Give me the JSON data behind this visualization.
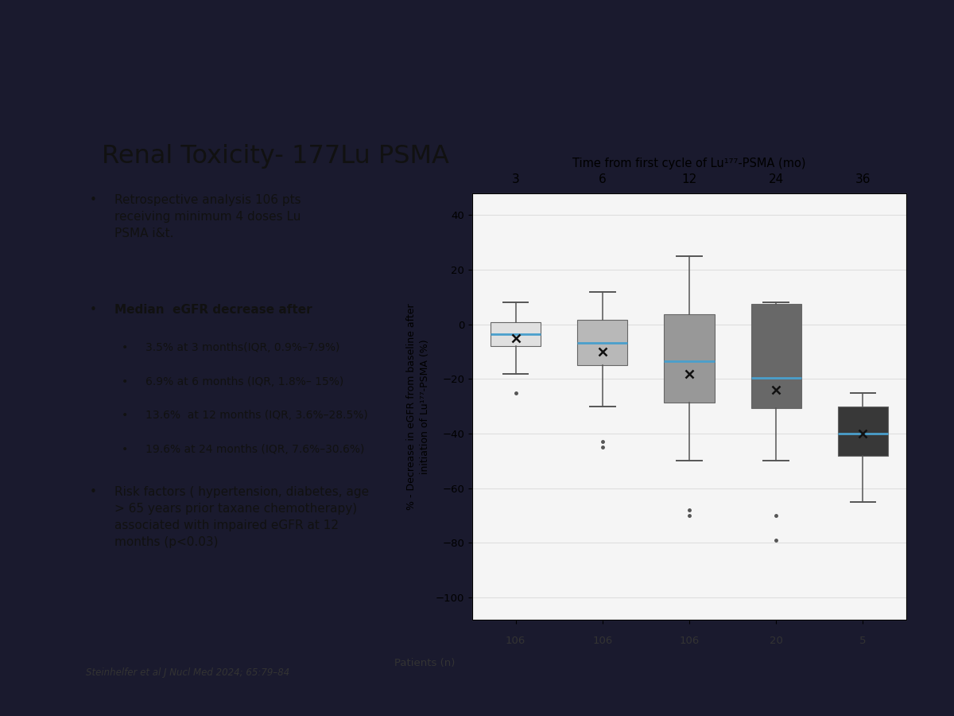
{
  "title": "Renal Toxicity- 177Lu PSMA",
  "chart_title": "Time from first cycle of Lu¹⁷⁷-PSMA (mo)",
  "ylabel": "% - Decrease in eGFR from baseline after\ninitiation of Lu¹⁷⁷-PSMA (%)",
  "xlabel_patients": "Patients (n)",
  "timepoints": [
    "3",
    "6",
    "12",
    "24",
    "36"
  ],
  "n_patients": [
    "106",
    "106",
    "106",
    "20",
    "5"
  ],
  "boxes": [
    {
      "q1": -7.9,
      "median": -3.5,
      "q3": 0.9,
      "mean": -5.0,
      "whislo": -18,
      "whishi": 8,
      "fliers": [
        -25
      ]
    },
    {
      "q1": -15.0,
      "median": -6.9,
      "q3": 1.8,
      "mean": -10.0,
      "whislo": -30,
      "whishi": 12,
      "fliers": [
        -43,
        -45
      ]
    },
    {
      "q1": -28.5,
      "median": -13.6,
      "q3": 3.6,
      "mean": -18.0,
      "whislo": -50,
      "whishi": 25,
      "fliers": [
        -68,
        -70
      ]
    },
    {
      "q1": -30.6,
      "median": -19.6,
      "q3": 7.6,
      "mean": -24.0,
      "whislo": -50,
      "whishi": 8,
      "fliers": [
        -70,
        -79
      ]
    },
    {
      "q1": -48,
      "median": -40,
      "q3": -30,
      "mean": -40.0,
      "whislo": -65,
      "whishi": -25,
      "fliers": []
    }
  ],
  "box_colors": [
    "#e0e0e0",
    "#b8b8b8",
    "#989898",
    "#686868",
    "#383838"
  ],
  "ylim": [
    -108,
    48
  ],
  "yticks": [
    40,
    20,
    0,
    -20,
    -40,
    -60,
    -80,
    -100
  ],
  "slide_bg": "#eaecf2",
  "left_bg": "#c2cce0",
  "dark_bg": "#1a1a2e",
  "reference": "Steinhelfer et al J Nucl Med 2024; 65:79–84",
  "bullet1": "Retrospective analysis 106 pts\nreceiving minimum 4 doses Lu\nPSMA i&t.",
  "bullet2_main": "Median  eGFR decrease after",
  "bullet2_sub1": "3.5% at 3 months(IQR, 0.9%–7.9%)",
  "bullet2_sub2": "6.9% at 6 months (IQR, 1.8%– 15%)",
  "bullet2_sub3": "13.6%  at 12 months (IQR, 3.6%–28.5%)",
  "bullet2_sub4": "19.6% at 24 months (IQR, 7.6%–30.6%)",
  "bullet3": "Risk factors ( hypertension, diabetes, age\n> 65 years prior taxane chemotherapy)\nassociated with impaired eGFR at 12\nmonths (p<0.03)"
}
